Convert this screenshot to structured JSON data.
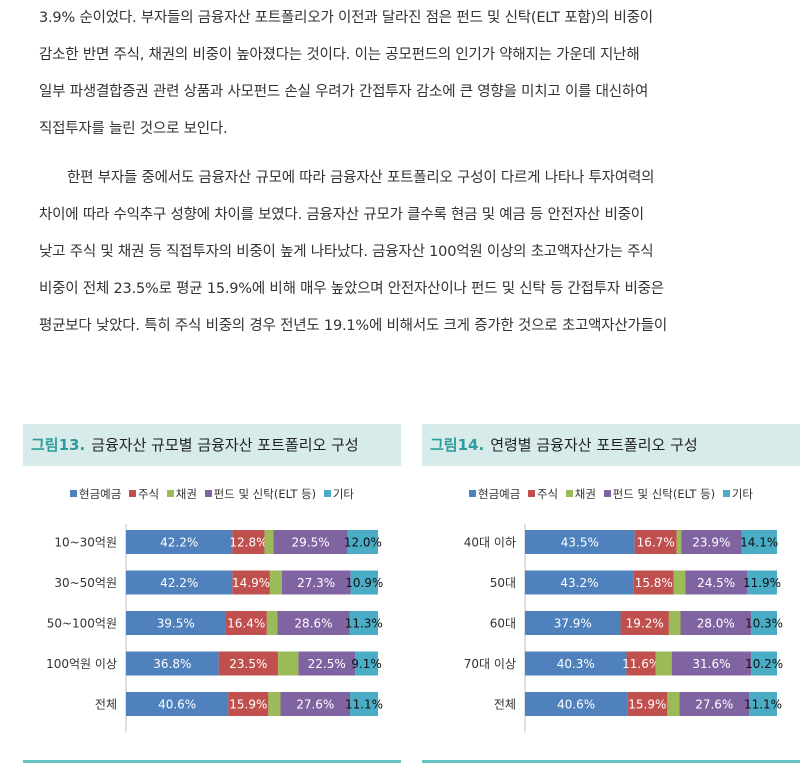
{
  "paragraphs": [
    {
      "lines": [
        "3.9% 순이었다. 부자들의 금융자산 포트폴리오가 이전과 달라진 점은 펀드 및 신탁(ELT 포함)의 비중이",
        "감소한 반면 주식, 채권의 비중이 높아졌다는 것이다. 이는 공모펀드의 인기가 약해지는 가운데 지난해",
        "일부 파생결합증권 관련 상품과 사모펀드 손실 우려가 간접투자 감소에 큰 영향을 미치고 이를 대신하여",
        "직접투자를 늘린 것으로 보인다."
      ]
    },
    {
      "lines": [
        "한편 부자들 중에서도 금융자산 규모에 따라 금융자산 포트폴리오 구성이 다르게 나타나 투자여력의",
        "차이에 따라 수익추구 성향에 차이를 보였다. 금융자산 규모가 클수록 현금 및 예금 등 안전자산 비중이",
        "낮고 주식 및 채권 등 직접투자의 비중이 높게 나타났다. 금융자산 100억원 이상의 초고액자산가는 주식",
        "비중이 전체 23.5%로 평균 15.9%에 비해 매우 높았으며 안전자산이나 펀드 및 신탁 등 간접투자 비중은",
        "평균보다 낮았다. 특히 주식 비중의 경우 전년도 19.1%에 비해서도 크게 증가한 것으로 초고액자산가들이"
      ]
    }
  ],
  "legend": [
    {
      "label": "현금예금",
      "color": "#4f81bd"
    },
    {
      "label": "주식",
      "color": "#c0504d"
    },
    {
      "label": "채권",
      "color": "#9bbb59"
    },
    {
      "label": "펀드 및 신탁(ELT 등)",
      "color": "#8064a2"
    },
    {
      "label": "기타",
      "color": "#4bacc6"
    }
  ],
  "figures": [
    {
      "number": "그림13.",
      "title": "금융자산 규모별 금융자산 포트폴리오 구성"
    },
    {
      "number": "그림14.",
      "title": "연령별 금융자산 포트폴리오 구성"
    }
  ],
  "chart_data": [
    {
      "type": "bar",
      "stacked": true,
      "orientation": "horizontal",
      "title": "금융자산 규모별 금융자산 포트폴리오 구성",
      "categories": [
        "10~30억원",
        "30~50억원",
        "50~100억원",
        "100억원 이상",
        "전체"
      ],
      "series": [
        {
          "name": "현금예금",
          "values": [
            42.2,
            42.2,
            39.5,
            36.8,
            40.6
          ],
          "labels": [
            "42.2%",
            "42.2%",
            "39.5%",
            "36.8%",
            "40.6%"
          ]
        },
        {
          "name": "주식",
          "values": [
            12.8,
            14.9,
            16.4,
            23.5,
            15.9
          ],
          "labels": [
            "12.8%",
            "14.9%",
            "16.4%",
            "23.5%",
            "15.9%"
          ]
        },
        {
          "name": "채권",
          "values": [
            3.5,
            4.7,
            4.2,
            8.1,
            4.8
          ],
          "labels": [
            "",
            "",
            "",
            "",
            ""
          ]
        },
        {
          "name": "펀드 및 신탁(ELT 등)",
          "values": [
            29.5,
            27.3,
            28.6,
            22.5,
            27.6
          ],
          "labels": [
            "29.5%",
            "27.3%",
            "28.6%",
            "22.5%",
            "27.6%"
          ]
        },
        {
          "name": "기타",
          "values": [
            12.0,
            10.9,
            11.3,
            9.1,
            11.1
          ],
          "labels": [
            "12.0%",
            "10.9%",
            "11.3%",
            "9.1%",
            "11.1%"
          ]
        }
      ],
      "xlim": [
        0,
        100
      ],
      "legend_position": "top"
    },
    {
      "type": "bar",
      "stacked": true,
      "orientation": "horizontal",
      "title": "연령별 금융자산 포트폴리오 구성",
      "categories": [
        "40대 이하",
        "50대",
        "60대",
        "70대 이상",
        "전체"
      ],
      "series": [
        {
          "name": "현금예금",
          "values": [
            43.5,
            43.2,
            37.9,
            40.3,
            40.6
          ],
          "labels": [
            "43.5%",
            "43.2%",
            "37.9%",
            "40.3%",
            "40.6%"
          ]
        },
        {
          "name": "주식",
          "values": [
            16.7,
            15.8,
            19.2,
            11.6,
            15.9
          ],
          "labels": [
            "16.7%",
            "15.8%",
            "19.2%",
            "11.6%",
            "15.9%"
          ]
        },
        {
          "name": "채권",
          "values": [
            1.8,
            4.6,
            4.6,
            6.3,
            4.8
          ],
          "labels": [
            "",
            "",
            "",
            "",
            ""
          ]
        },
        {
          "name": "펀드 및 신탁(ELT 등)",
          "values": [
            23.9,
            24.5,
            28.0,
            31.6,
            27.6
          ],
          "labels": [
            "23.9%",
            "24.5%",
            "28.0%",
            "31.6%",
            "27.6%"
          ]
        },
        {
          "name": "기타",
          "values": [
            14.1,
            11.9,
            10.3,
            10.2,
            11.1
          ],
          "labels": [
            "14.1%",
            "11.9%",
            "10.3%",
            "10.2%",
            "11.1%"
          ]
        }
      ],
      "xlim": [
        0,
        100
      ],
      "legend_position": "top"
    }
  ]
}
